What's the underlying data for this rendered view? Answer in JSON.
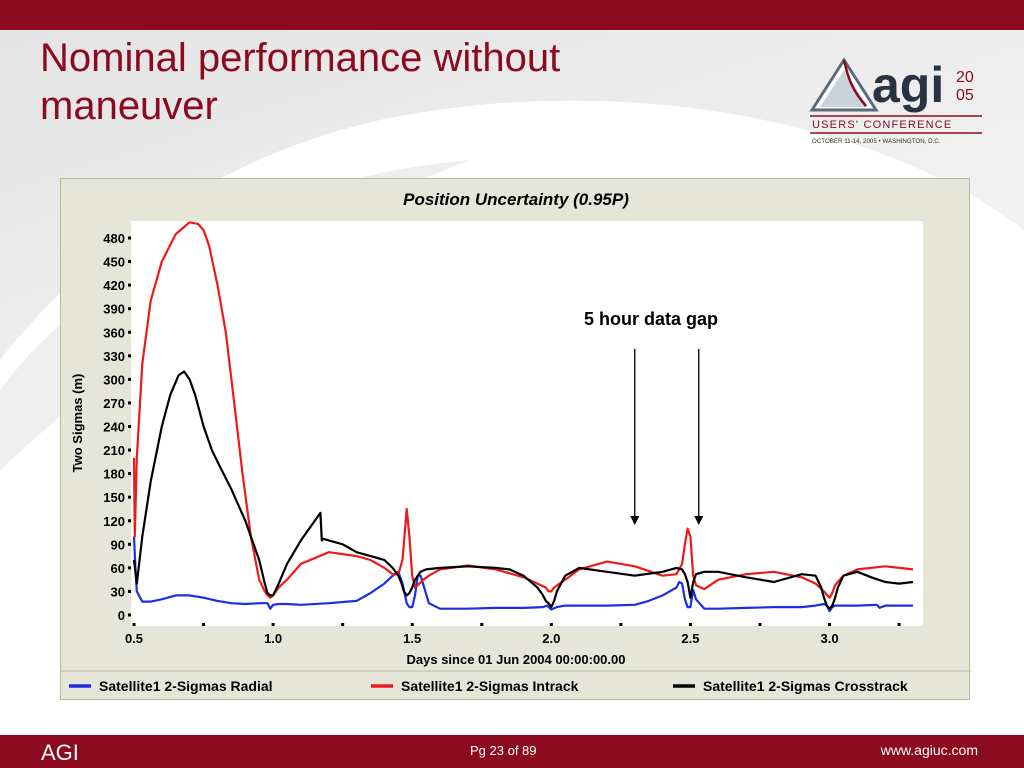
{
  "slide": {
    "title_line1": "Nominal performance without",
    "title_line2": "maneuver",
    "footer_left": "AGI",
    "footer_page": "Pg 23 of 89",
    "footer_url": "www.agiuc.com"
  },
  "logo": {
    "wordmark": "agi",
    "year_top": "20",
    "year_bottom": "05",
    "subtitle": "USERS' CONFERENCE",
    "dates": "OCTOBER 11-14, 2005 • WASHINGTON, D.C."
  },
  "annotation": {
    "text": "5 hour data gap",
    "arrow_x": [
      2.3,
      2.53
    ]
  },
  "colors": {
    "brand": "#8b0a1e",
    "radial": "#1a2ee6",
    "intrack": "#ee1a1a",
    "crosstrack": "#000000",
    "plot_bg": "#ffffff",
    "frame_bg": "#e6e6d8"
  },
  "chart_data": {
    "type": "line",
    "title": "Position Uncertainty (0.95P)",
    "xlabel": "Days since 01 Jun 2004  00:00:00.00",
    "ylabel": "Two Sigmas (m)",
    "xlim": [
      0.5,
      3.3
    ],
    "ylim": [
      0,
      490
    ],
    "xticks": [
      0.5,
      1.0,
      1.5,
      2.0,
      2.5,
      3.0
    ],
    "xtick_labels": [
      "0.5",
      "1.0",
      "1.5",
      "2.0",
      "2.5",
      "3.0"
    ],
    "yticks": [
      0,
      30,
      60,
      90,
      120,
      150,
      180,
      210,
      240,
      270,
      300,
      330,
      360,
      390,
      420,
      450,
      480
    ],
    "grid": false,
    "legend_position": "bottom",
    "series": [
      {
        "name": "Satellite1 2-Sigmas Radial",
        "color": "#1a2ee6",
        "x": [
          0.5,
          0.505,
          0.51,
          0.53,
          0.56,
          0.6,
          0.65,
          0.7,
          0.75,
          0.8,
          0.85,
          0.9,
          0.95,
          0.98,
          0.99,
          1.0,
          1.02,
          1.05,
          1.1,
          1.2,
          1.3,
          1.35,
          1.4,
          1.43,
          1.45,
          1.465,
          1.48,
          1.49,
          1.5,
          1.51,
          1.52,
          1.53,
          1.56,
          1.6,
          1.7,
          1.8,
          1.9,
          1.97,
          1.985,
          2.0,
          2.02,
          2.05,
          2.1,
          2.2,
          2.3,
          2.35,
          2.4,
          2.45,
          2.46,
          2.47,
          2.48,
          2.49,
          2.5,
          2.51,
          2.52,
          2.55,
          2.6,
          2.7,
          2.8,
          2.9,
          2.95,
          2.98,
          2.99,
          3.0,
          3.01,
          3.02,
          3.05,
          3.1,
          3.17,
          3.18,
          3.2,
          3.3
        ],
        "values": [
          100,
          60,
          30,
          17,
          17,
          20,
          25,
          25,
          22,
          18,
          15,
          14,
          15,
          15,
          8,
          13,
          14,
          14,
          13,
          15,
          18,
          28,
          40,
          50,
          55,
          40,
          15,
          10,
          10,
          25,
          50,
          50,
          15,
          8,
          8,
          9,
          9,
          10,
          12,
          7,
          10,
          12,
          12,
          12,
          13,
          18,
          25,
          35,
          42,
          40,
          20,
          10,
          10,
          32,
          20,
          8,
          8,
          9,
          10,
          10,
          12,
          14,
          12,
          5,
          10,
          12,
          12,
          12,
          13,
          9,
          12,
          12
        ]
      },
      {
        "name": "Satellite1 2-Sigmas Intrack",
        "color": "#ee1a1a",
        "x": [
          0.5,
          0.503,
          0.51,
          0.53,
          0.56,
          0.6,
          0.65,
          0.7,
          0.73,
          0.75,
          0.77,
          0.8,
          0.83,
          0.86,
          0.89,
          0.92,
          0.95,
          0.97,
          0.98,
          0.99,
          1.0,
          1.02,
          1.05,
          1.1,
          1.2,
          1.3,
          1.35,
          1.4,
          1.43,
          1.45,
          1.465,
          1.48,
          1.49,
          1.5,
          1.51,
          1.52,
          1.54,
          1.56,
          1.6,
          1.7,
          1.8,
          1.9,
          1.95,
          1.98,
          1.99,
          2.0,
          2.01,
          2.05,
          2.1,
          2.2,
          2.3,
          2.4,
          2.45,
          2.47,
          2.48,
          2.49,
          2.5,
          2.51,
          2.52,
          2.55,
          2.6,
          2.7,
          2.8,
          2.9,
          2.95,
          2.98,
          2.99,
          3.0,
          3.01,
          3.02,
          3.05,
          3.1,
          3.2,
          3.3
        ],
        "values": [
          200,
          100,
          200,
          320,
          400,
          450,
          485,
          500,
          498,
          490,
          470,
          420,
          360,
          270,
          180,
          100,
          45,
          30,
          25,
          22,
          25,
          35,
          45,
          65,
          80,
          75,
          70,
          60,
          52,
          52,
          70,
          135,
          100,
          50,
          35,
          38,
          45,
          50,
          58,
          63,
          58,
          48,
          40,
          35,
          30,
          30,
          35,
          45,
          58,
          68,
          62,
          50,
          52,
          65,
          90,
          110,
          100,
          50,
          38,
          33,
          45,
          52,
          55,
          48,
          40,
          30,
          26,
          22,
          28,
          38,
          50,
          58,
          62,
          58
        ]
      },
      {
        "name": "Satellite1 2-Sigmas Crosstrack",
        "color": "#000000",
        "x": [
          0.5,
          0.51,
          0.53,
          0.56,
          0.6,
          0.63,
          0.66,
          0.68,
          0.7,
          0.72,
          0.75,
          0.78,
          0.8,
          0.85,
          0.9,
          0.95,
          0.97,
          0.98,
          0.99,
          1.0,
          1.02,
          1.05,
          1.1,
          1.15,
          1.17,
          1.175,
          1.18,
          1.2,
          1.25,
          1.3,
          1.35,
          1.4,
          1.43,
          1.45,
          1.46,
          1.47,
          1.48,
          1.49,
          1.5,
          1.51,
          1.52,
          1.53,
          1.55,
          1.6,
          1.7,
          1.8,
          1.85,
          1.9,
          1.95,
          1.97,
          1.98,
          1.99,
          2.0,
          2.01,
          2.02,
          2.05,
          2.1,
          2.2,
          2.3,
          2.4,
          2.45,
          2.47,
          2.48,
          2.49,
          2.5,
          2.51,
          2.52,
          2.55,
          2.6,
          2.7,
          2.8,
          2.9,
          2.95,
          2.97,
          2.98,
          2.99,
          3.0,
          3.01,
          3.02,
          3.03,
          3.05,
          3.1,
          3.15,
          3.2,
          3.25,
          3.3
        ],
        "values": [
          70,
          40,
          100,
          170,
          240,
          280,
          305,
          310,
          300,
          280,
          240,
          210,
          195,
          160,
          120,
          70,
          40,
          28,
          25,
          25,
          40,
          65,
          95,
          120,
          130,
          95,
          97,
          95,
          90,
          80,
          75,
          70,
          60,
          50,
          42,
          30,
          25,
          28,
          35,
          45,
          50,
          55,
          58,
          60,
          62,
          60,
          58,
          50,
          35,
          25,
          18,
          15,
          10,
          18,
          30,
          50,
          60,
          55,
          50,
          55,
          60,
          58,
          52,
          42,
          22,
          42,
          52,
          55,
          55,
          48,
          42,
          52,
          50,
          35,
          22,
          12,
          8,
          12,
          22,
          35,
          50,
          55,
          48,
          42,
          40,
          42
        ]
      }
    ]
  }
}
